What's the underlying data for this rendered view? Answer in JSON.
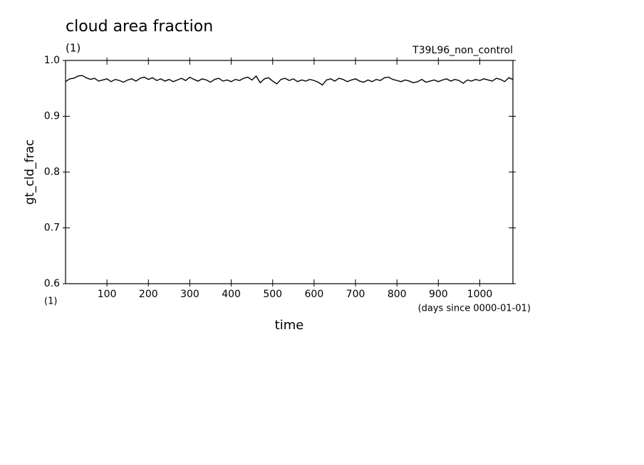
{
  "chart_data": {
    "type": "line",
    "title": "cloud area fraction",
    "units": "(1)",
    "experiment": "T39L96_non_control",
    "y_label": "gt_cld_frac",
    "x_units": "(1)",
    "x_note": "(days since 0000-01-01)",
    "x_label": "time",
    "color": "#000000",
    "xlim": [
      0,
      1080
    ],
    "xticks": [
      100,
      200,
      300,
      400,
      500,
      600,
      700,
      800,
      900,
      1000
    ],
    "ylim": [
      0.6,
      1.0
    ],
    "yticks": [
      0.6,
      0.7,
      0.8,
      0.9,
      {
        "value": 1.0,
        "label": "1.0"
      }
    ],
    "x": [
      0,
      10,
      20,
      30,
      40,
      50,
      60,
      70,
      80,
      90,
      100,
      110,
      120,
      130,
      140,
      150,
      160,
      170,
      180,
      190,
      200,
      210,
      220,
      230,
      240,
      250,
      260,
      270,
      280,
      290,
      300,
      310,
      320,
      330,
      340,
      350,
      360,
      370,
      380,
      390,
      400,
      410,
      420,
      430,
      440,
      450,
      460,
      470,
      480,
      490,
      500,
      510,
      520,
      530,
      540,
      550,
      560,
      570,
      580,
      590,
      600,
      610,
      620,
      630,
      640,
      650,
      660,
      670,
      680,
      690,
      700,
      710,
      720,
      730,
      740,
      750,
      760,
      770,
      780,
      790,
      800,
      810,
      820,
      830,
      840,
      850,
      860,
      870,
      880,
      890,
      900,
      910,
      920,
      930,
      940,
      950,
      960,
      970,
      980,
      990,
      1000,
      1010,
      1020,
      1030,
      1040,
      1050,
      1060,
      1070,
      1080
    ],
    "values": [
      0.962,
      0.967,
      0.968,
      0.972,
      0.973,
      0.969,
      0.966,
      0.968,
      0.963,
      0.965,
      0.967,
      0.962,
      0.966,
      0.964,
      0.961,
      0.965,
      0.967,
      0.963,
      0.968,
      0.97,
      0.966,
      0.969,
      0.964,
      0.967,
      0.963,
      0.966,
      0.962,
      0.965,
      0.968,
      0.964,
      0.97,
      0.966,
      0.963,
      0.967,
      0.965,
      0.961,
      0.966,
      0.968,
      0.963,
      0.965,
      0.962,
      0.966,
      0.964,
      0.968,
      0.97,
      0.965,
      0.972,
      0.96,
      0.967,
      0.969,
      0.963,
      0.958,
      0.966,
      0.968,
      0.964,
      0.967,
      0.962,
      0.965,
      0.963,
      0.966,
      0.964,
      0.961,
      0.956,
      0.965,
      0.967,
      0.963,
      0.968,
      0.966,
      0.962,
      0.965,
      0.967,
      0.963,
      0.961,
      0.965,
      0.962,
      0.966,
      0.964,
      0.969,
      0.97,
      0.966,
      0.964,
      0.962,
      0.965,
      0.963,
      0.96,
      0.962,
      0.966,
      0.961,
      0.963,
      0.965,
      0.962,
      0.965,
      0.967,
      0.963,
      0.966,
      0.964,
      0.959,
      0.965,
      0.963,
      0.966,
      0.964,
      0.967,
      0.965,
      0.963,
      0.968,
      0.966,
      0.962,
      0.969,
      0.966
    ]
  }
}
